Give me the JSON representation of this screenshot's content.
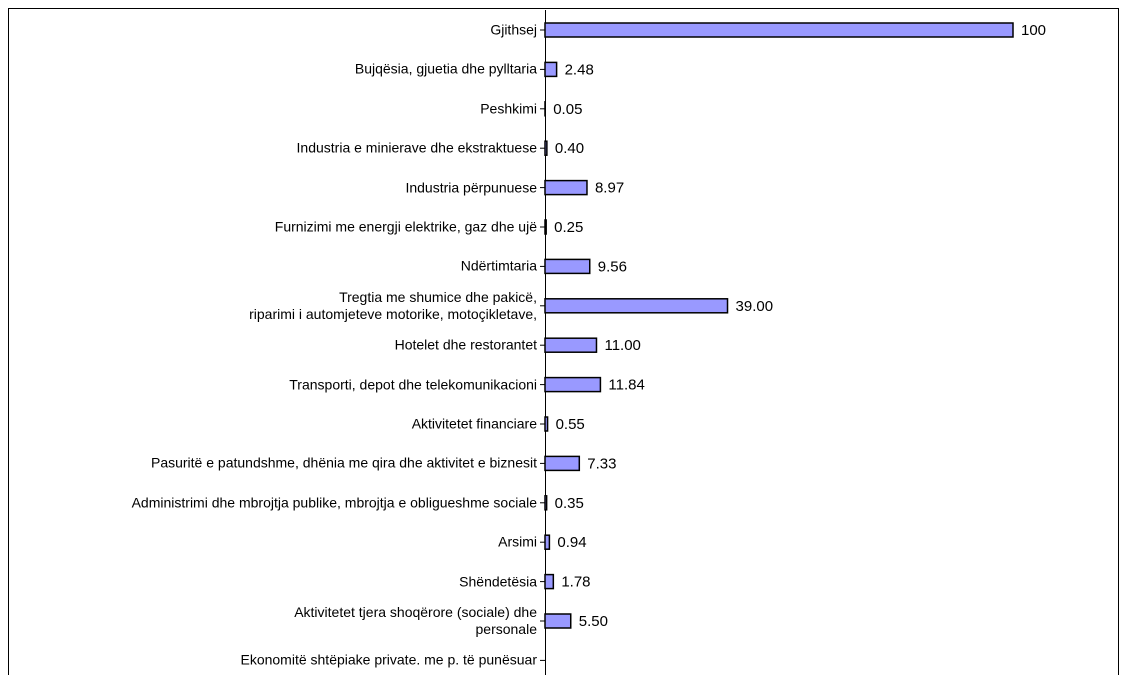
{
  "chart_data": {
    "type": "hbar",
    "categories": [
      "Gjithsej",
      "Bujqësia, gjuetia dhe pylltaria",
      "Peshkimi",
      "Industria e minierave dhe ekstraktuese",
      "Industria përpunuese",
      "Furnizimi me energji elektrike, gaz dhe ujë",
      "Ndërtimtaria",
      "Tregtia me shumice dhe pakicë,\nriparimi i automjeteve motorike, motoçikletave,",
      "Hotelet dhe restorantet",
      "Transporti, depot dhe telekomunikacioni",
      "Aktivitetet financiare",
      "Pasuritë e patundshme, dhënia me qira dhe aktivitet e biznesit",
      "Administrimi dhe mbrojtja publike, mbrojtja e obligueshme sociale",
      "Arsimi",
      "Shëndetësia",
      "Aktivitetet tjera shoqërore (sociale) dhe\npersonale",
      "Ekonomitë shtëpiake private. me p. të punësuar"
    ],
    "values": [
      100,
      2.48,
      0.05,
      0.4,
      8.97,
      0.25,
      9.56,
      39.0,
      11.0,
      11.84,
      0.55,
      7.33,
      0.35,
      0.94,
      1.78,
      5.5,
      null
    ],
    "value_labels": [
      "100",
      "2.48",
      "0.05",
      "0.40",
      "8.97",
      "0.25",
      "9.56",
      "39.00",
      "11.00",
      "11.84",
      "0.55",
      "7.33",
      "0.35",
      "0.94",
      "1.78",
      "5.50",
      null
    ],
    "color": "#9999ff",
    "xlim": [
      0,
      100
    ]
  }
}
